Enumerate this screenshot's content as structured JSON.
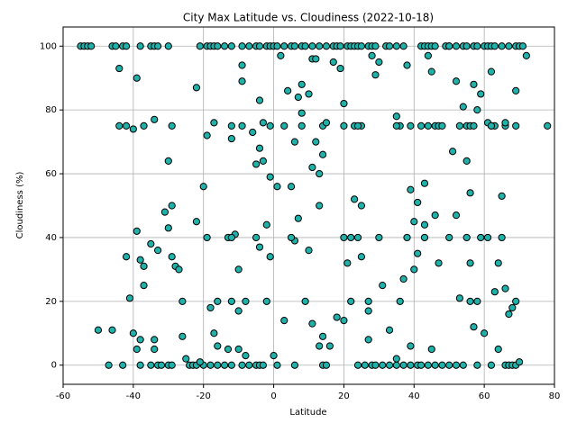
{
  "chart_data": {
    "type": "scatter",
    "title": "City Max Latitude vs. Cloudiness (2022-10-18)",
    "x_label": "Latitude",
    "y_label": "Cloudiness (%)",
    "color": "#20b2aa",
    "edge_color": "#000000",
    "grid": true,
    "xlim": [
      -60,
      80
    ],
    "xticks": [
      -60,
      -40,
      -20,
      0,
      20,
      40,
      60,
      80
    ],
    "ylim": [
      -6,
      106
    ],
    "yticks": [
      0,
      20,
      40,
      60,
      80,
      100
    ],
    "x": [
      -55,
      -54,
      -53,
      -52,
      -46,
      -45,
      -43,
      -42,
      -38,
      -35,
      -34,
      -33,
      -30,
      -21,
      -19,
      -18,
      -17,
      -16,
      -14,
      -12,
      -9,
      -7,
      -5,
      -4,
      -2,
      -1,
      0,
      1,
      3,
      5,
      6,
      8,
      9,
      11,
      13,
      15,
      17,
      18,
      19,
      21,
      22,
      23,
      24,
      25,
      27,
      28,
      29,
      32,
      33,
      35,
      37,
      42,
      43,
      44,
      45,
      46,
      49,
      50,
      52,
      54,
      55,
      57,
      58,
      60,
      61,
      62,
      63,
      65,
      67,
      69,
      70,
      71,
      -47,
      -43,
      -38,
      -35,
      -33,
      -32,
      -30,
      -29,
      -24,
      -23,
      -22,
      -20,
      -18,
      -16,
      -14,
      -12,
      -9,
      -7,
      -5,
      -4,
      -3,
      1,
      6,
      14,
      15,
      24,
      26,
      28,
      29,
      31,
      33,
      35,
      37,
      39,
      41,
      42,
      44,
      46,
      48,
      50,
      52,
      54,
      58,
      62,
      66,
      67,
      68,
      69,
      -44,
      -42,
      -37,
      -29,
      -12,
      -9,
      -1,
      3,
      8,
      14,
      20,
      23,
      25,
      36,
      39,
      42,
      44,
      46,
      47,
      53,
      55,
      56,
      62,
      63,
      66,
      69,
      78,
      -50,
      -46,
      -44,
      -41,
      -42,
      -40,
      -39,
      -39,
      -38,
      -37,
      -37,
      -35,
      -34,
      -33,
      -31,
      -30,
      -30,
      -29,
      -29,
      -28,
      -27,
      -26,
      -26,
      -22,
      -22,
      -20,
      -19,
      -19,
      -18,
      -17,
      -17,
      -13,
      -12,
      -11,
      -10,
      -10,
      -9,
      -9,
      -8,
      -6,
      -5,
      -4,
      -4,
      -4,
      -3,
      -3,
      -2,
      -1,
      -1,
      0,
      1,
      2,
      3,
      4,
      5,
      6,
      6,
      7,
      7,
      8,
      8,
      10,
      10,
      11,
      11,
      12,
      13,
      13,
      14,
      14,
      17,
      18,
      19,
      20,
      20,
      21,
      22,
      23,
      25,
      25,
      27,
      27,
      29,
      30,
      31,
      33,
      35,
      37,
      38,
      39,
      40,
      40,
      41,
      41,
      43,
      43,
      44,
      45,
      46,
      47,
      50,
      51,
      52,
      52,
      53,
      54,
      55,
      56,
      56,
      57,
      57,
      58,
      59,
      60,
      61,
      62,
      63,
      64,
      64,
      65,
      65,
      66,
      67,
      68,
      69,
      69,
      70,
      72,
      43,
      35,
      -13,
      -10,
      16,
      13,
      39,
      45,
      27,
      56,
      58,
      36,
      -25,
      -40,
      -39,
      -38,
      -34,
      -34,
      -21,
      -16,
      -16,
      -12,
      -8,
      -2,
      9,
      24,
      38,
      55,
      20,
      5,
      -12,
      -5,
      30,
      57,
      59,
      61,
      66,
      62,
      24,
      28,
      11,
      12,
      22,
      50,
      48,
      15,
      35
    ],
    "values": [
      100,
      100,
      100,
      100,
      100,
      100,
      100,
      100,
      100,
      100,
      100,
      100,
      100,
      100,
      100,
      100,
      100,
      100,
      100,
      100,
      100,
      100,
      100,
      100,
      100,
      100,
      100,
      100,
      100,
      100,
      100,
      100,
      100,
      100,
      100,
      100,
      100,
      100,
      100,
      100,
      100,
      100,
      100,
      100,
      100,
      100,
      100,
      100,
      100,
      100,
      100,
      100,
      100,
      100,
      100,
      100,
      100,
      100,
      100,
      100,
      100,
      100,
      100,
      100,
      100,
      100,
      100,
      100,
      100,
      100,
      100,
      100,
      0,
      0,
      0,
      0,
      0,
      0,
      0,
      0,
      0,
      0,
      0,
      0,
      0,
      0,
      0,
      0,
      0,
      0,
      0,
      0,
      0,
      0,
      0,
      0,
      0,
      0,
      0,
      0,
      0,
      0,
      0,
      0,
      0,
      0,
      0,
      0,
      0,
      0,
      0,
      0,
      0,
      0,
      0,
      0,
      0,
      0,
      0,
      0,
      75,
      75,
      75,
      75,
      75,
      75,
      75,
      75,
      75,
      75,
      75,
      75,
      75,
      75,
      75,
      75,
      75,
      75,
      75,
      75,
      75,
      75,
      75,
      75,
      75,
      75,
      75,
      11,
      11,
      93,
      21,
      34,
      74,
      90,
      42,
      33,
      31,
      25,
      38,
      77,
      36,
      48,
      64,
      43,
      50,
      34,
      31,
      30,
      20,
      9,
      87,
      45,
      56,
      72,
      40,
      18,
      76,
      10,
      40,
      71,
      41,
      30,
      17,
      94,
      89,
      20,
      73,
      63,
      83,
      68,
      37,
      64,
      76,
      44,
      34,
      59,
      3,
      56,
      97,
      14,
      86,
      56,
      39,
      70,
      84,
      46,
      88,
      79,
      85,
      36,
      62,
      13,
      70,
      60,
      50,
      66,
      9,
      95,
      15,
      93,
      82,
      14,
      32,
      20,
      52,
      50,
      34,
      17,
      8,
      91,
      95,
      25,
      11,
      78,
      27,
      94,
      55,
      45,
      30,
      51,
      35,
      44,
      57,
      97,
      92,
      47,
      32,
      40,
      67,
      47,
      89,
      21,
      81,
      64,
      54,
      32,
      88,
      12,
      80,
      85,
      10,
      76,
      92,
      23,
      32,
      5,
      40,
      53,
      24,
      16,
      18,
      86,
      20,
      1,
      97,
      40,
      2,
      5,
      5,
      6,
      6,
      6,
      5,
      20,
      20,
      20,
      20,
      2,
      10,
      5,
      8,
      8,
      5,
      1,
      6,
      20,
      20,
      3,
      20,
      20,
      40,
      40,
      40,
      40,
      40,
      40,
      40,
      40,
      75,
      40,
      40,
      76,
      75,
      75,
      97,
      96,
      96,
      40,
      100,
      75,
      76,
      75
    ]
  }
}
